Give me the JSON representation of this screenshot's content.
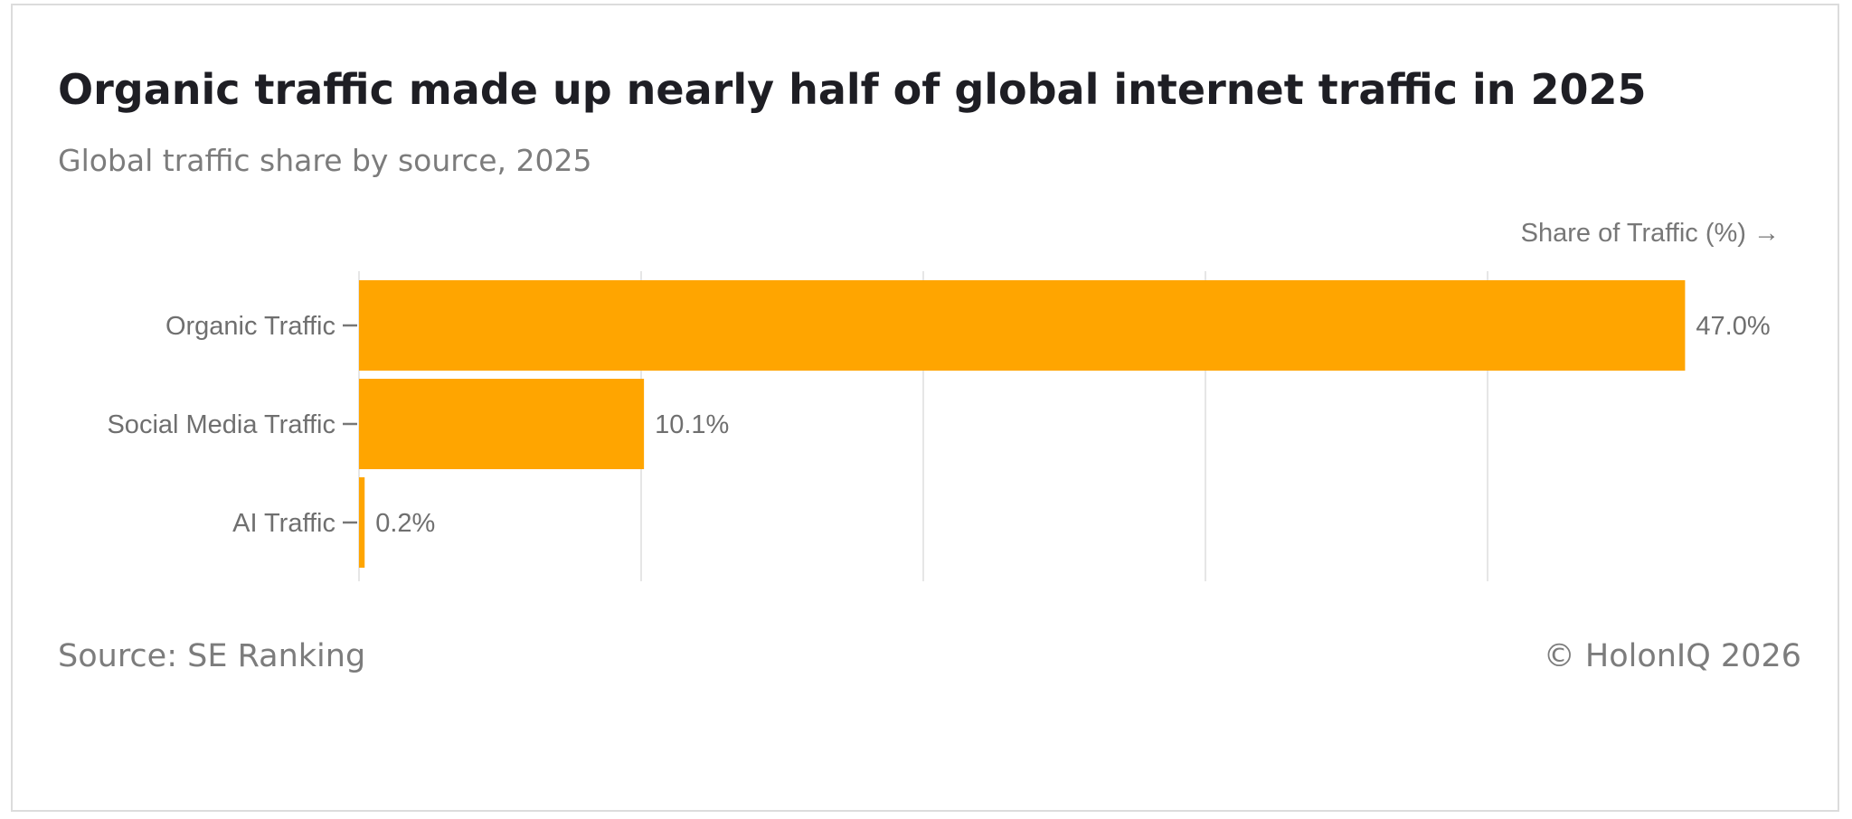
{
  "header": {
    "title": "Organic traffic made up nearly half of global internet traffic in 2025",
    "subtitle": "Global traffic share by source, 2025"
  },
  "footer": {
    "source": "Source: SE Ranking",
    "credit": "© HolonIQ 2026"
  },
  "colors": {
    "bar": "#FFA500",
    "grid": "#e6e6e6",
    "tick": "#777777",
    "label": "#6f6f6f"
  },
  "chart_data": {
    "type": "bar",
    "orientation": "horizontal",
    "title": "Organic traffic made up nearly half of global internet traffic in 2025",
    "subtitle": "Global traffic share by source, 2025",
    "xlabel": "Share of Traffic (%) →",
    "ylabel": "",
    "categories": [
      "Organic Traffic",
      "Social Media Traffic",
      "AI Traffic"
    ],
    "values": [
      47.0,
      10.1,
      0.2
    ],
    "data_labels": [
      "47.0%",
      "10.1%",
      "0.2%"
    ],
    "xlim": [
      0,
      50
    ],
    "gridlines_at": [
      0,
      10,
      20,
      30,
      40
    ],
    "grid": true,
    "legend": "none"
  }
}
